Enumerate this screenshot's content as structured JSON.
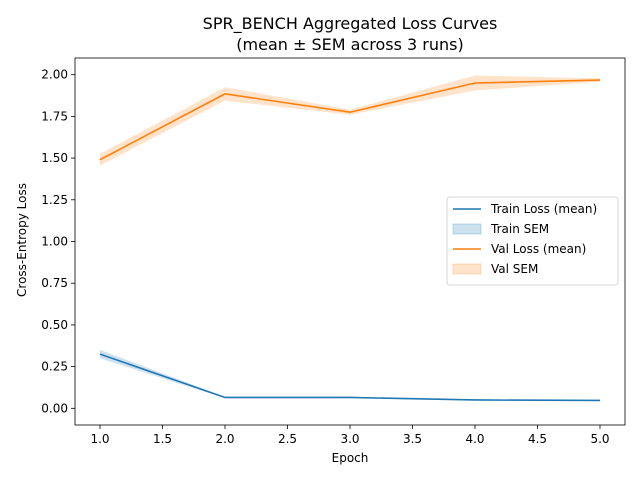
{
  "chart_data": {
    "type": "line",
    "title": "SPR_BENCH Aggregated Loss Curves",
    "subtitle": "(mean ± SEM across 3 runs)",
    "xlabel": "Epoch",
    "ylabel": "Cross-Entropy Loss",
    "xlim": [
      0.8,
      5.2
    ],
    "ylim": [
      -0.1,
      2.1
    ],
    "xticks": [
      "1.0",
      "1.5",
      "2.0",
      "2.5",
      "3.0",
      "3.5",
      "4.0",
      "4.5",
      "5.0"
    ],
    "yticks": [
      "0.00",
      "0.25",
      "0.50",
      "0.75",
      "1.00",
      "1.25",
      "1.50",
      "1.75",
      "2.00"
    ],
    "x": [
      1,
      2,
      3,
      4,
      5
    ],
    "series": [
      {
        "name": "Train Loss (mean)",
        "band_name": "Train SEM",
        "color": "#1f77b4",
        "band_color": "#1f77b4",
        "values": [
          0.325,
          0.065,
          0.065,
          0.05,
          0.047
        ],
        "sem": [
          0.025,
          0.004,
          0.004,
          0.003,
          0.003
        ]
      },
      {
        "name": "Val Loss (mean)",
        "band_name": "Val SEM",
        "color": "#ff7f0e",
        "band_color": "#ff7f0e",
        "values": [
          1.49,
          1.885,
          1.775,
          1.95,
          1.968
        ],
        "sem": [
          0.035,
          0.04,
          0.015,
          0.045,
          0.01
        ]
      }
    ],
    "grid": false,
    "legend_position": "center-right"
  }
}
